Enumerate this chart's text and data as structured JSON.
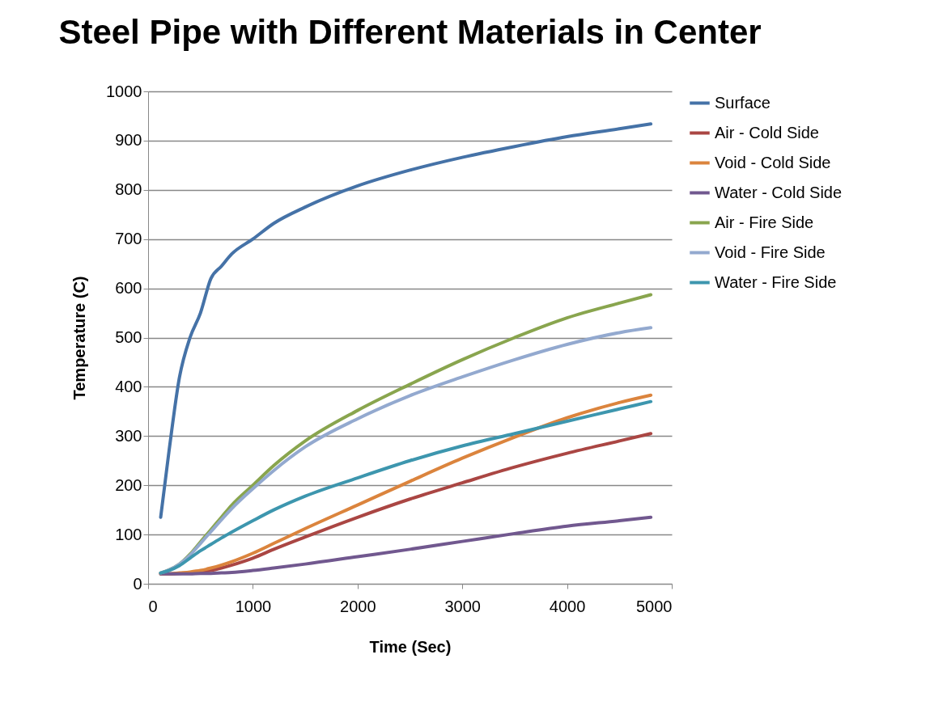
{
  "chart_data": {
    "type": "line",
    "title": "Steel Pipe with Different Materials in Center",
    "xlabel": "Time (Sec)",
    "ylabel": "Temperature (C)",
    "x": [
      120,
      200,
      300,
      400,
      500,
      600,
      700,
      800,
      1000,
      1200,
      1500,
      2000,
      2500,
      3000,
      3500,
      4000,
      4500,
      4800
    ],
    "series": [
      {
        "name": "Surface",
        "color": "#4572a7",
        "values": [
          135,
          270,
          420,
          500,
          550,
          620,
          645,
          670,
          700,
          732,
          765,
          808,
          840,
          866,
          888,
          908,
          924,
          934
        ]
      },
      {
        "name": "Air - Cold Side",
        "color": "#aa4643",
        "values": [
          20,
          20,
          21,
          22,
          24,
          27,
          32,
          38,
          52,
          70,
          95,
          135,
          172,
          205,
          237,
          265,
          290,
          305
        ]
      },
      {
        "name": "Void - Cold Side",
        "color": "#db843d",
        "values": [
          20,
          20,
          22,
          24,
          27,
          32,
          38,
          45,
          62,
          82,
          112,
          160,
          208,
          255,
          298,
          337,
          368,
          383
        ]
      },
      {
        "name": "Water - Cold Side",
        "color": "#71588f",
        "values": [
          20,
          20,
          20,
          20,
          21,
          21,
          22,
          23,
          27,
          32,
          40,
          55,
          70,
          86,
          102,
          117,
          128,
          135
        ]
      },
      {
        "name": "Air - Fire Side",
        "color": "#89a54e",
        "values": [
          22,
          28,
          40,
          60,
          85,
          110,
          135,
          160,
          200,
          240,
          290,
          352,
          405,
          455,
          500,
          540,
          570,
          587
        ]
      },
      {
        "name": "Void - Fire Side",
        "color": "#93a9cf",
        "values": [
          22,
          28,
          40,
          58,
          82,
          106,
          130,
          153,
          193,
          230,
          278,
          335,
          382,
          420,
          455,
          486,
          510,
          520
        ]
      },
      {
        "name": "Water - Fire Side",
        "color": "#3d96ae",
        "values": [
          22,
          27,
          37,
          52,
          67,
          80,
          93,
          105,
          128,
          150,
          178,
          215,
          250,
          280,
          305,
          330,
          355,
          370
        ]
      }
    ],
    "xlim": [
      0,
      5000
    ],
    "xticks": [
      0,
      1000,
      2000,
      3000,
      4000,
      5000
    ],
    "ylim": [
      0,
      1000
    ],
    "yticks": [
      0,
      100,
      200,
      300,
      400,
      500,
      600,
      700,
      800,
      900,
      1000
    ],
    "grid": "y",
    "legend": "right",
    "marker": "none",
    "line_style": "solid"
  }
}
